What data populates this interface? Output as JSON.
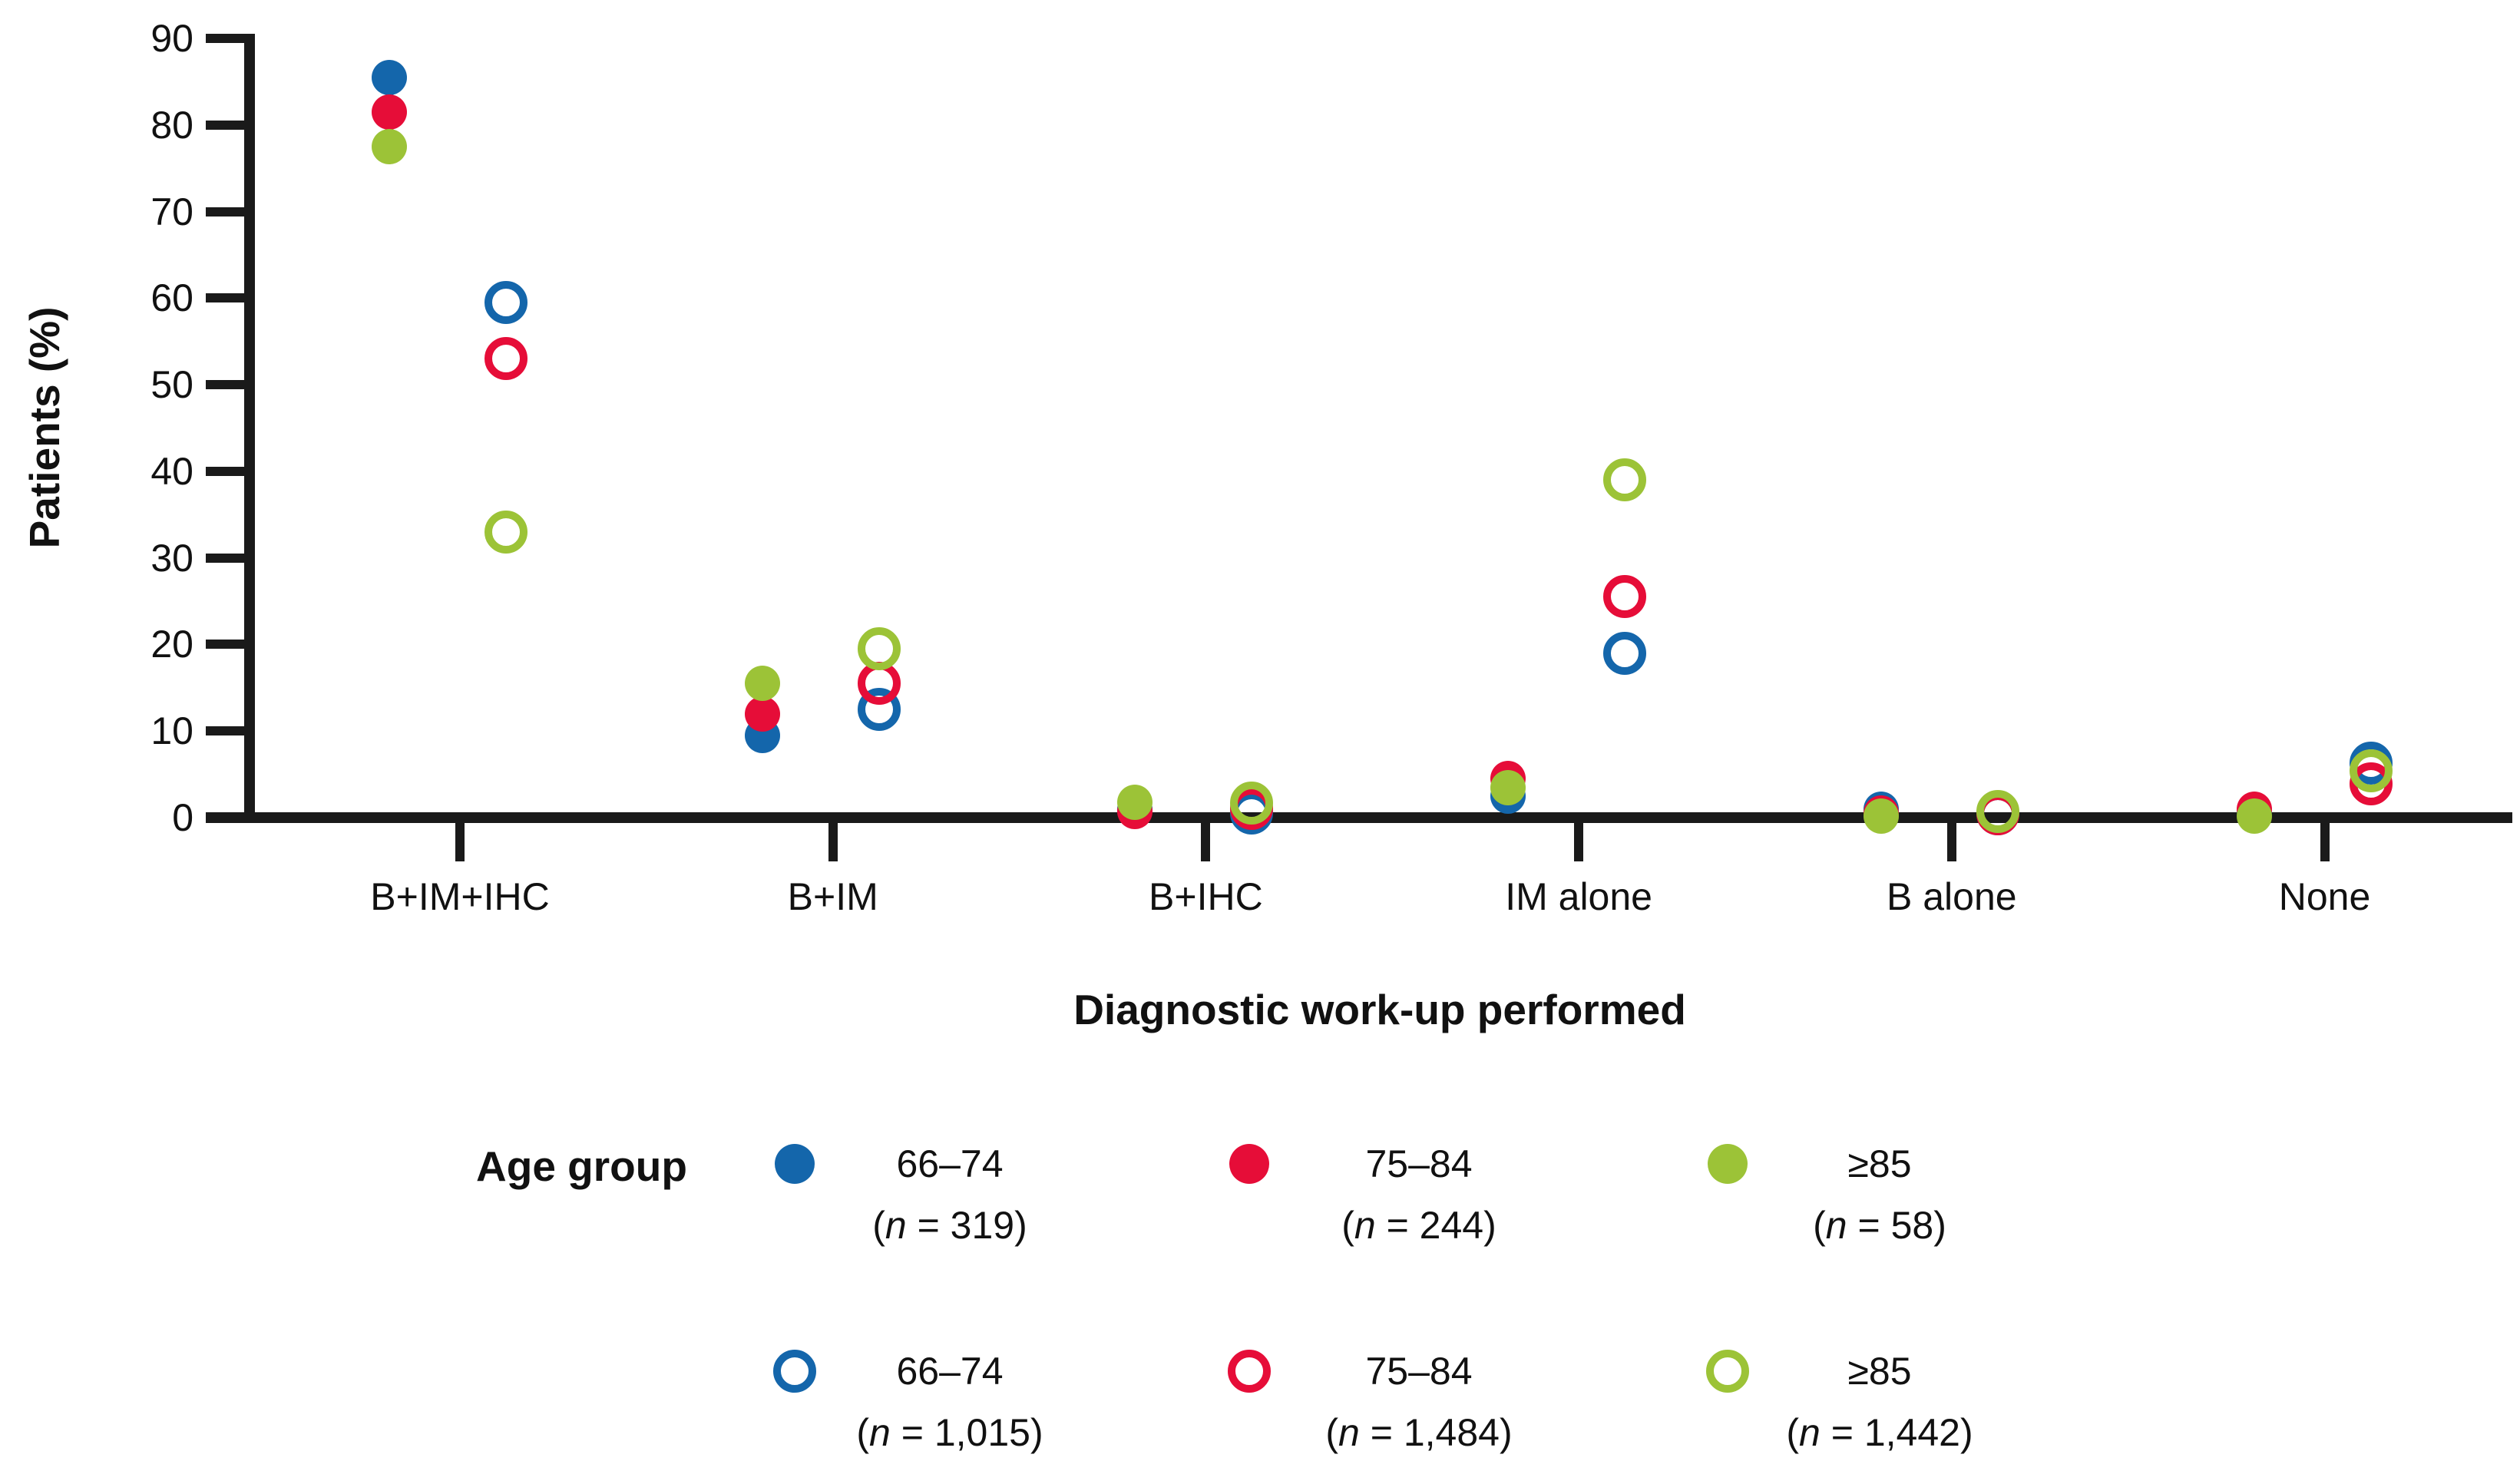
{
  "figure": {
    "y_axis_title": "Patients (%)",
    "x_axis_title": "Diagnostic work-up performed"
  },
  "colors": {
    "blue": "#1466ab",
    "red": "#e60d38",
    "green": "#9cc337",
    "axis": "#1a1a1a",
    "text": "#111111"
  },
  "chart_data": {
    "type": "scatter",
    "title": "",
    "xlabel": "Diagnostic work-up performed",
    "ylabel": "Patients (%)",
    "ylim": [
      0,
      90
    ],
    "y_tick_step": 10,
    "y_tick_labels": [
      "0",
      "10",
      "20",
      "30",
      "40",
      "50",
      "60",
      "70",
      "80",
      "90"
    ],
    "grid": false,
    "legend_position": "bottom",
    "categories": [
      "B+IM+IHC",
      "B+IM",
      "B+IHC",
      "IM alone",
      "B alone",
      "None"
    ],
    "series": [
      {
        "id": "filled-66-74",
        "age_group": "66–74",
        "n": "319",
        "marker": "filled",
        "color": "blue",
        "values": [
          85.5,
          9.5,
          1.0,
          2.5,
          1.0,
          0.8
        ]
      },
      {
        "id": "filled-75-84",
        "age_group": "75–84",
        "n": "244",
        "marker": "filled",
        "color": "red",
        "values": [
          81.5,
          12.0,
          0.7,
          4.5,
          0.5,
          1.0
        ]
      },
      {
        "id": "filled-ge85",
        "age_group": "≥85",
        "n": "58",
        "marker": "filled",
        "color": "green",
        "values": [
          77.5,
          15.5,
          1.8,
          3.5,
          0.2,
          0.2
        ]
      },
      {
        "id": "open-66-74",
        "age_group": "66–74",
        "n": "1,015",
        "marker": "open",
        "color": "blue",
        "values": [
          59.5,
          12.5,
          0.5,
          19.0,
          0.4,
          6.3
        ]
      },
      {
        "id": "open-75-84",
        "age_group": "75–84",
        "n": "1,484",
        "marker": "open",
        "color": "red",
        "values": [
          53.0,
          15.5,
          1.1,
          25.5,
          0.4,
          3.9
        ]
      },
      {
        "id": "open-ge85",
        "age_group": "≥85",
        "n": "1,442",
        "marker": "open",
        "color": "green",
        "values": [
          33.0,
          19.5,
          1.7,
          39.0,
          0.7,
          5.4
        ]
      }
    ]
  },
  "legend": {
    "title": "Age group",
    "rows": [
      {
        "marker": "filled",
        "items": [
          {
            "age_group": "66–74",
            "n": "319",
            "color": "blue"
          },
          {
            "age_group": "75–84",
            "n": "244",
            "color": "red"
          },
          {
            "age_group": "≥85",
            "n": "58",
            "color": "green"
          }
        ]
      },
      {
        "marker": "open",
        "items": [
          {
            "age_group": "66–74",
            "n": "1,015",
            "color": "blue"
          },
          {
            "age_group": "75–84",
            "n": "1,484",
            "color": "red"
          },
          {
            "age_group": "≥85",
            "n": "1,442",
            "color": "green"
          }
        ]
      }
    ]
  }
}
